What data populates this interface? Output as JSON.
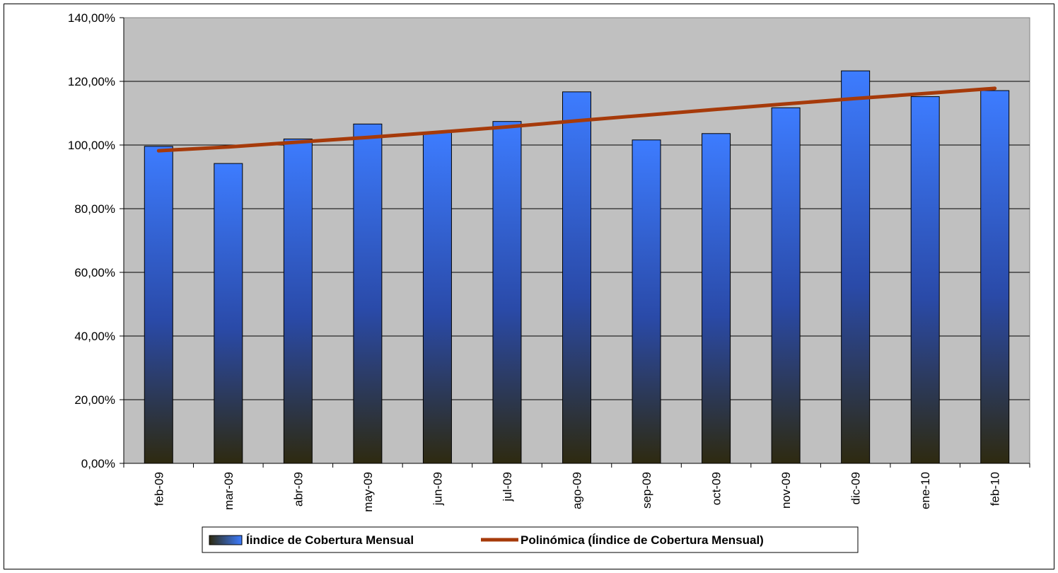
{
  "chart_data": {
    "type": "bar",
    "title": "",
    "xlabel": "",
    "ylabel": "",
    "categories": [
      "feb-09",
      "mar-09",
      "abr-09",
      "may-09",
      "jun-09",
      "jul-09",
      "ago-09",
      "sep-09",
      "oct-09",
      "nov-09",
      "dic-09",
      "ene-10",
      "feb-10"
    ],
    "series": [
      {
        "name": "Íindice de Cobertura Mensual",
        "type": "bar",
        "values": [
          99.6,
          94.2,
          101.9,
          106.6,
          103.9,
          107.4,
          116.7,
          101.6,
          103.6,
          111.7,
          123.3,
          115.2,
          117.1
        ]
      },
      {
        "name": "Polinómica (Íindice de Cobertura Mensual)",
        "type": "trendline",
        "values": [
          98.2,
          99.4,
          100.9,
          102.4,
          104.0,
          105.7,
          107.6,
          109.4,
          111.2,
          112.9,
          114.6,
          116.2,
          117.8
        ]
      }
    ],
    "ylim": [
      0,
      140
    ],
    "yticks": [
      0,
      20,
      40,
      60,
      80,
      100,
      120,
      140
    ],
    "ytick_labels": [
      "0,00%",
      "20,00%",
      "40,00%",
      "60,00%",
      "80,00%",
      "100,00%",
      "120,00%",
      "140,00%"
    ],
    "grid": true,
    "legend": "bottom",
    "colors": {
      "plot_bg": "#c0c0c0",
      "bar_top": "#3d7cff",
      "bar_mid": "#2a4aa8",
      "bar_bottom": "#2e2a10",
      "trend": "#a63a0a"
    }
  }
}
